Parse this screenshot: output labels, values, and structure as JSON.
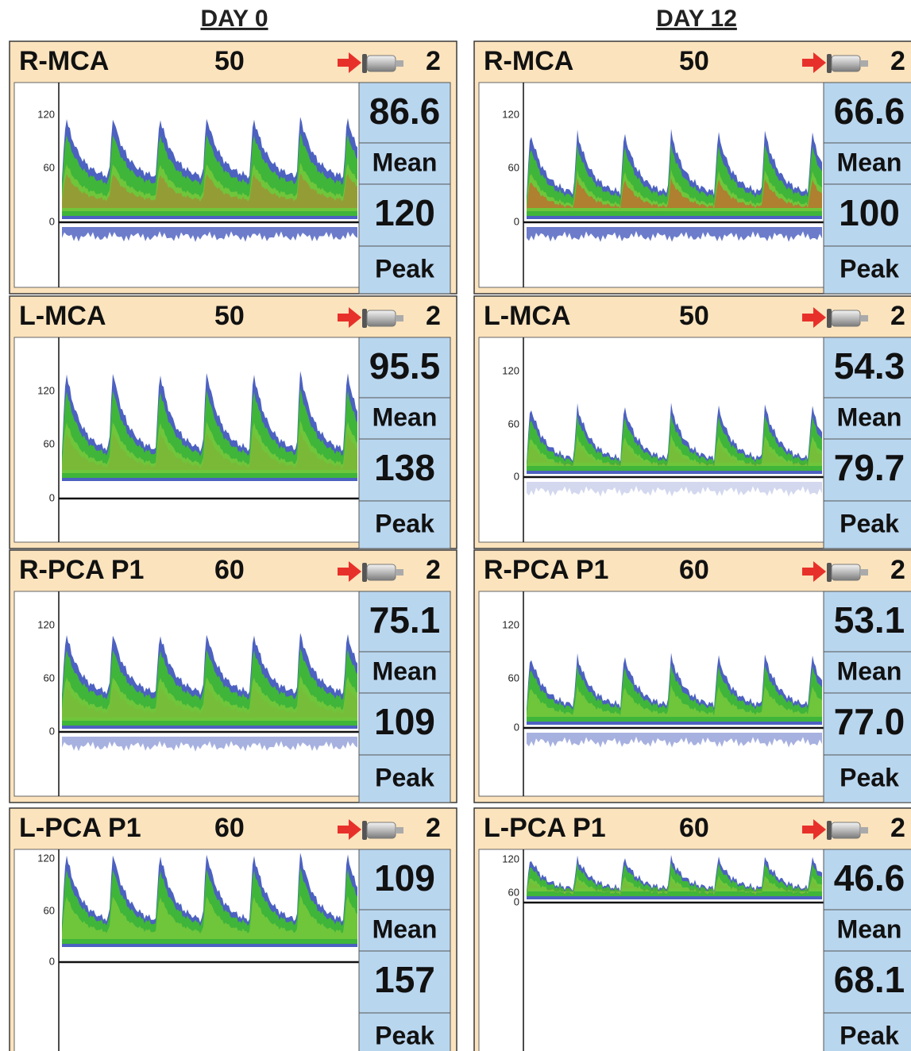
{
  "columns": [
    {
      "title": "DAY 0",
      "panels": [
        {
          "vessel": "R-MCA",
          "depth": "50",
          "gate": "2",
          "yticks": [
            "120",
            "60",
            "0"
          ],
          "mean": "86.6",
          "mean_label": "Mean",
          "peak": "120",
          "peak_label": "Peak"
        },
        {
          "vessel": "L-MCA",
          "depth": "50",
          "gate": "2",
          "yticks": [
            "120",
            "60",
            "0"
          ],
          "mean": "95.5",
          "mean_label": "Mean",
          "peak": "138",
          "peak_label": "Peak"
        },
        {
          "vessel": "R-PCA P1",
          "depth": "60",
          "gate": "2",
          "yticks": [
            "120",
            "60",
            "0"
          ],
          "mean": "75.1",
          "mean_label": "Mean",
          "peak": "109",
          "peak_label": "Peak"
        },
        {
          "vessel": "L-PCA P1",
          "depth": "60",
          "gate": "2",
          "yticks": [
            "120",
            "60",
            "0"
          ],
          "mean": "109",
          "mean_label": "Mean",
          "peak": "157",
          "peak_label": "Peak"
        }
      ]
    },
    {
      "title": "DAY 12",
      "panels": [
        {
          "vessel": "R-MCA",
          "depth": "50",
          "gate": "2",
          "yticks": [
            "120",
            "60",
            "0"
          ],
          "mean": "66.6",
          "mean_label": "Mean",
          "peak": "100",
          "peak_label": "Peak"
        },
        {
          "vessel": "L-MCA",
          "depth": "50",
          "gate": "2",
          "yticks": [
            "120",
            "60",
            "0"
          ],
          "mean": "54.3",
          "mean_label": "Mean",
          "peak": "79.7",
          "peak_label": "Peak"
        },
        {
          "vessel": "R-PCA P1",
          "depth": "60",
          "gate": "2",
          "yticks": [
            "120",
            "60",
            "0"
          ],
          "mean": "53.1",
          "mean_label": "Mean",
          "peak": "77.0",
          "peak_label": "Peak"
        },
        {
          "vessel": "L-PCA P1",
          "depth": "60",
          "gate": "2",
          "yticks": [
            "120",
            "60",
            "0"
          ],
          "mean": "46.6",
          "mean_label": "Mean",
          "peak": "68.1",
          "peak_label": "Peak"
        }
      ]
    }
  ]
}
